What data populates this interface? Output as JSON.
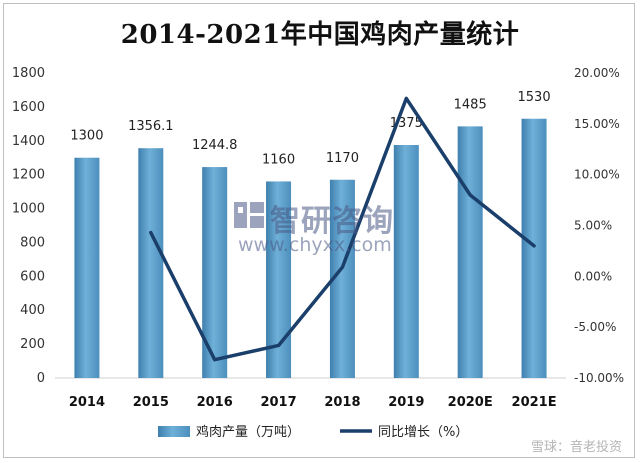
{
  "chart_data": {
    "type": "bar",
    "title": "2014-2021年中国鸡肉产量统计",
    "categories": [
      "2014",
      "2015",
      "2016",
      "2017",
      "2018",
      "2019",
      "2020E",
      "2021E"
    ],
    "series": [
      {
        "name": "鸡肉产量（万吨）",
        "type": "bar",
        "axis": "left",
        "values": [
          1300,
          1356.1,
          1244.8,
          1160,
          1170,
          1375,
          1485,
          1530
        ],
        "data_labels": [
          "1300",
          "1356.1",
          "1244.8",
          "1160",
          "1170",
          "1375",
          "1485",
          "1530"
        ],
        "color": "#5a9ac3"
      },
      {
        "name": "同比增长（%）",
        "type": "line",
        "axis": "right",
        "values": [
          null,
          4.3,
          -8.2,
          -6.8,
          0.9,
          17.5,
          8.0,
          3.0
        ],
        "color": "#1b3f6b"
      }
    ],
    "y_left": {
      "min": 0,
      "max": 1800,
      "ticks": [
        "0",
        "200",
        "400",
        "600",
        "800",
        "1000",
        "1200",
        "1400",
        "1600",
        "1800"
      ]
    },
    "y_right": {
      "min": -10,
      "max": 20,
      "ticks": [
        "-10.00%",
        "-5.00%",
        "0.00%",
        "5.00%",
        "10.00%",
        "15.00%",
        "20.00%"
      ]
    },
    "grid": false,
    "legend_position": "bottom"
  },
  "watermark": {
    "name": "智研咨询",
    "url": "www.chyxx.com"
  },
  "source_mark": "雪球：音老投资"
}
